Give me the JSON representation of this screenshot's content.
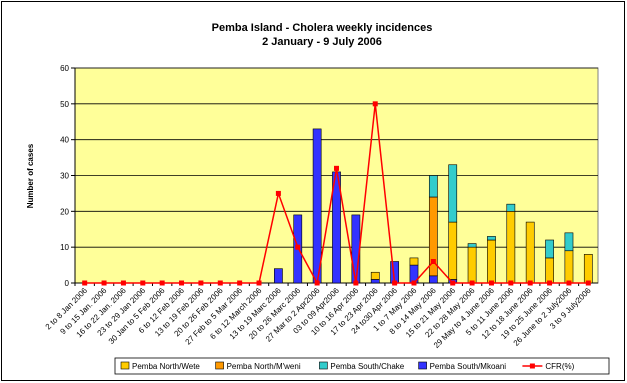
{
  "chart_data": {
    "type": "bar",
    "title": "Pemba Island - Cholera weekly incidences",
    "subtitle": "2 January - 9 July 2006",
    "xlabel": "",
    "ylabel": "Number of cases",
    "ylim": [
      0,
      60
    ],
    "yticks": [
      0,
      10,
      20,
      30,
      40,
      50,
      60
    ],
    "stacked": true,
    "grid": true,
    "legend_position": "bottom",
    "plot_bg": "#FFFF99",
    "categories": [
      "2 to 8 Jan 2006",
      "9 to 15 Jan. 2006",
      "16 to 22 Jan. 2006",
      "23 to 29 Jan 2006",
      "30 Jan to 5 Feb 2006",
      "6 to 12 Feb 2006",
      "13 to 19 Feb 2006",
      "20 to 26 Feb 2006",
      "27 Feb to 5 Mar 2006",
      "6 to 12 March 2006",
      "13 to 19 Marc 2006",
      "20 to 26 Marc 2006",
      "27 Mar to 2 Apr2006",
      "03 to 09 Apr2006",
      "10 to 16 Apr 2006",
      "17 to 23 Apr 2006",
      "24 to30 Apr 2006",
      "1 to 7 May 2006",
      "8 to 14 May 2006",
      "15 to 21 May 2006",
      "22 to 28 May 2006",
      "29 May to 4 June 2006",
      "5 to 11 June 2006",
      "12 to 18 June 2006",
      "19 to 25 June 2006",
      "26 June to 2 July2006",
      "3 to 9 July2006"
    ],
    "series": [
      {
        "name": "Pemba North/Wete",
        "color": "#FFCC00",
        "values": [
          0,
          0,
          0,
          0,
          0,
          0,
          0,
          0,
          0,
          0,
          0,
          0,
          0,
          0,
          0,
          2,
          0,
          2,
          0,
          16,
          10,
          12,
          20,
          17,
          7,
          9,
          8
        ]
      },
      {
        "name": "Pemba North/M'weni",
        "color": "#FF9900",
        "values": [
          0,
          0,
          0,
          0,
          0,
          0,
          0,
          0,
          0,
          0,
          0,
          0,
          0,
          0,
          0,
          0,
          0,
          0,
          22,
          0,
          0,
          0,
          0,
          0,
          0,
          0,
          0
        ]
      },
      {
        "name": "Pemba South/Chake",
        "color": "#33CCCC",
        "values": [
          0,
          0,
          0,
          0,
          0,
          0,
          0,
          0,
          0,
          0,
          0,
          0,
          0,
          0,
          0,
          0,
          0,
          0,
          6,
          16,
          1,
          1,
          2,
          0,
          5,
          5,
          0
        ]
      },
      {
        "name": "Pemba South/Mkoani",
        "color": "#3333FF",
        "values": [
          0,
          0,
          0,
          0,
          0,
          0,
          0,
          0,
          0,
          0,
          4,
          19,
          43,
          31,
          19,
          1,
          6,
          5,
          2,
          1,
          0,
          0,
          0,
          0,
          0,
          0,
          0
        ]
      },
      {
        "name": "CFR(%)",
        "type": "line",
        "color": "#FF0000",
        "values": [
          0,
          0,
          0,
          0,
          0,
          0,
          0,
          0,
          0,
          0,
          25,
          10,
          0,
          32,
          0,
          50,
          0,
          0,
          6,
          0,
          0,
          0,
          0,
          0,
          0,
          0,
          0
        ]
      }
    ]
  }
}
